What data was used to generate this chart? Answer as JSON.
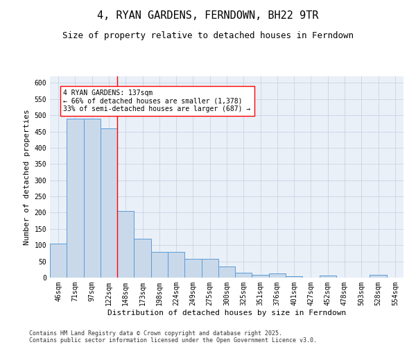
{
  "title": "4, RYAN GARDENS, FERNDOWN, BH22 9TR",
  "subtitle": "Size of property relative to detached houses in Ferndown",
  "xlabel": "Distribution of detached houses by size in Ferndown",
  "ylabel": "Number of detached properties",
  "categories": [
    "46sqm",
    "71sqm",
    "97sqm",
    "122sqm",
    "148sqm",
    "173sqm",
    "198sqm",
    "224sqm",
    "249sqm",
    "275sqm",
    "300sqm",
    "325sqm",
    "351sqm",
    "376sqm",
    "401sqm",
    "427sqm",
    "452sqm",
    "478sqm",
    "503sqm",
    "528sqm",
    "554sqm"
  ],
  "values": [
    105,
    490,
    490,
    460,
    205,
    120,
    80,
    80,
    57,
    57,
    35,
    14,
    9,
    12,
    4,
    0,
    6,
    0,
    0,
    8,
    0
  ],
  "bar_color": "#c9d9ea",
  "bar_edge_color": "#5b9bd5",
  "ylim": [
    0,
    620
  ],
  "yticks": [
    0,
    50,
    100,
    150,
    200,
    250,
    300,
    350,
    400,
    450,
    500,
    550,
    600
  ],
  "red_line_index": 3.5,
  "annotation_text": "4 RYAN GARDENS: 137sqm\n← 66% of detached houses are smaller (1,378)\n33% of semi-detached houses are larger (687) →",
  "footer": "Contains HM Land Registry data © Crown copyright and database right 2025.\nContains public sector information licensed under the Open Government Licence v3.0.",
  "bg_color": "#ffffff",
  "grid_color": "#c8d4e3",
  "title_fontsize": 11,
  "subtitle_fontsize": 9,
  "axis_label_fontsize": 8,
  "tick_fontsize": 7,
  "annotation_fontsize": 7,
  "footer_fontsize": 6
}
